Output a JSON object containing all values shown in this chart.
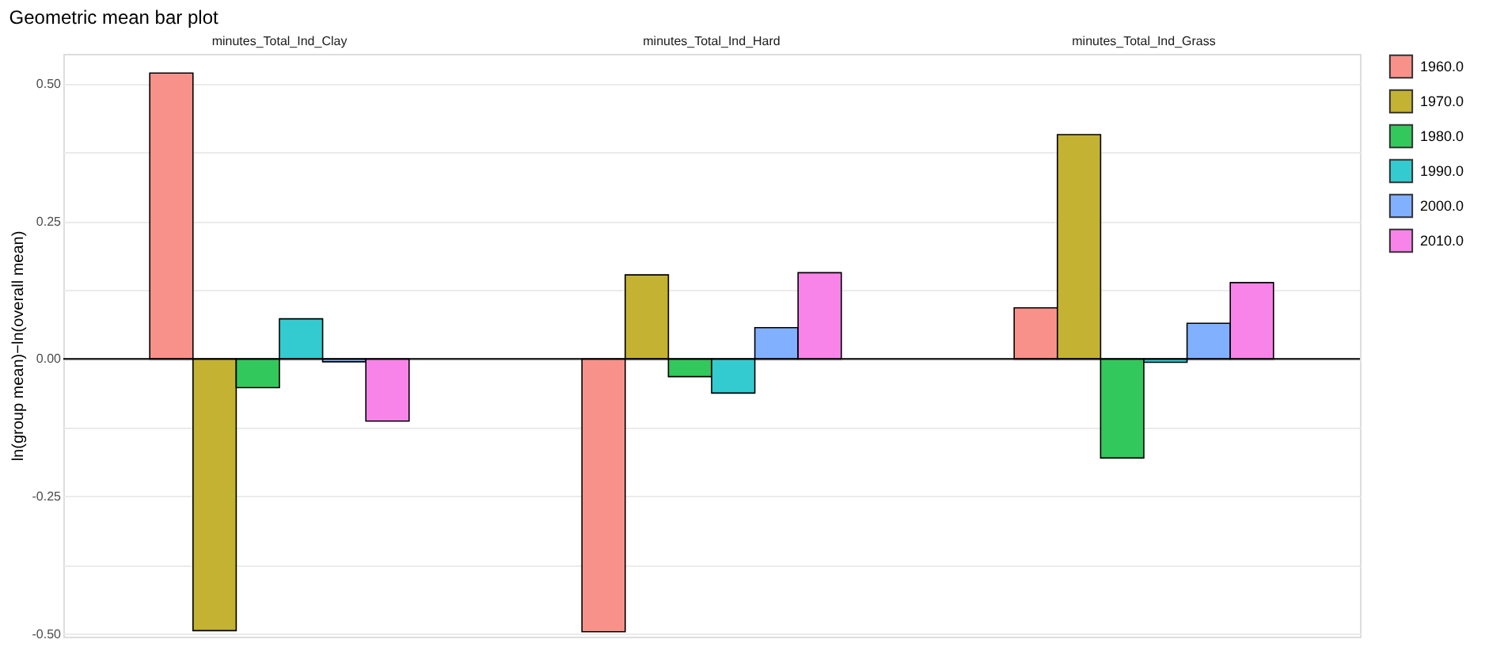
{
  "chart_data": {
    "type": "bar",
    "title": "Geometric mean bar plot",
    "ylabel": "ln(group mean)−ln(overall mean)",
    "categories": [
      "minutes_Total_Ind_Clay",
      "minutes_Total_Ind_Hard",
      "minutes_Total_Ind_Grass"
    ],
    "series": [
      {
        "name": "1960.0",
        "color": "#f8918a",
        "values": [
          0.52,
          -0.496,
          0.093
        ]
      },
      {
        "name": "1970.0",
        "color": "#c4b232",
        "values": [
          -0.494,
          0.153,
          0.408
        ]
      },
      {
        "name": "1980.0",
        "color": "#33c85c",
        "values": [
          -0.052,
          -0.032,
          -0.18
        ]
      },
      {
        "name": "1990.0",
        "color": "#33cbcf",
        "values": [
          0.073,
          -0.062,
          -0.006
        ]
      },
      {
        "name": "2000.0",
        "color": "#80b0ff",
        "values": [
          -0.005,
          0.057,
          0.065
        ]
      },
      {
        "name": "2010.0",
        "color": "#f883e9",
        "values": [
          -0.113,
          0.157,
          0.139
        ]
      }
    ],
    "ylim": [
      -0.505,
      0.555
    ],
    "yticks": [
      {
        "value": -0.5,
        "label": "-0.50"
      },
      {
        "value": -0.375,
        "label": null
      },
      {
        "value": -0.25,
        "label": "-0.25"
      },
      {
        "value": -0.125,
        "label": null
      },
      {
        "value": 0,
        "label": "0.00"
      },
      {
        "value": 0.125,
        "label": null
      },
      {
        "value": 0.25,
        "label": "0.25"
      },
      {
        "value": 0.375,
        "label": null
      },
      {
        "value": 0.5,
        "label": "0.50"
      }
    ],
    "ref_lines": [
      {
        "axis": "y",
        "value": 0,
        "color": "#000000"
      }
    ],
    "grid": "y",
    "legend": "right"
  }
}
